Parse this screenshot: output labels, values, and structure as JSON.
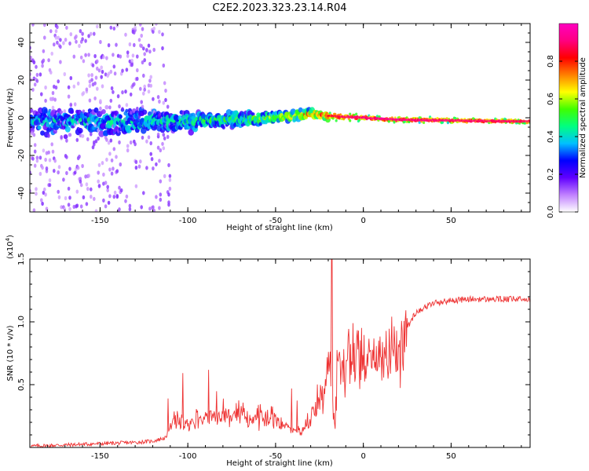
{
  "title": "C2E2.2023.323.23.14.R04",
  "chart_data": [
    {
      "type": "heatmap",
      "panel": "top",
      "xlabel": "Height of straight line (km)",
      "ylabel": "Frequency (Hz)",
      "xlim": [
        -190,
        95
      ],
      "ylim": [
        -50,
        50
      ],
      "xticks": [
        -150,
        -100,
        -50,
        0,
        50
      ],
      "yticks": [
        -40,
        -20,
        0,
        20,
        40
      ],
      "colorbar": {
        "label": "Normalized spectral amplitude",
        "range": [
          0,
          1
        ],
        "ticks": [
          "0.0",
          "0.2",
          "0.4",
          "0.6",
          "0.8"
        ],
        "tick_values": [
          0.0,
          0.2,
          0.4,
          0.6,
          0.8
        ],
        "colors": [
          "#ffffff",
          "#c080ff",
          "#6000ff",
          "#0000ff",
          "#00c0ff",
          "#00ff80",
          "#40ff00",
          "#ffff00",
          "#ff8000",
          "#ff0000",
          "#ff0080",
          "#ff00c0"
        ]
      },
      "band": {
        "description_free": true,
        "center_hz": [
          [
            -190,
            -2
          ],
          [
            -100,
            -2
          ],
          [
            -50,
            0
          ],
          [
            -30,
            2
          ],
          [
            -20,
            1
          ],
          [
            0,
            0
          ],
          [
            20,
            -1
          ],
          [
            95,
            -2
          ]
        ],
        "halfwidth_hz": [
          [
            -190,
            9
          ],
          [
            -130,
            9
          ],
          [
            -100,
            7
          ],
          [
            -50,
            4
          ],
          [
            -20,
            3
          ],
          [
            0,
            2
          ],
          [
            95,
            1.5
          ]
        ],
        "peak_amplitude": [
          [
            -190,
            0.35
          ],
          [
            -100,
            0.4
          ],
          [
            -60,
            0.5
          ],
          [
            -20,
            0.8
          ],
          [
            0,
            0.9
          ],
          [
            95,
            0.85
          ]
        ]
      }
    },
    {
      "type": "line",
      "panel": "bottom",
      "xlabel": "Height of straight line (km)",
      "ylabel": "SNR (10 * v/v)",
      "multiplier_label": "(x10",
      "multiplier_exp": "4",
      "xlim": [
        -190,
        95
      ],
      "ylim": [
        0,
        1.5
      ],
      "xticks": [
        -150,
        -100,
        -50,
        0,
        50
      ],
      "yticks": [
        0.5,
        1.0,
        1.5
      ],
      "ytick_labels": [
        "0.5",
        "1.0",
        "1.5"
      ],
      "color": "#ee3333",
      "series": [
        {
          "name": "SNR",
          "x": [
            -190,
            -170,
            -150,
            -130,
            -120,
            -112,
            -108,
            -100,
            -90,
            -80,
            -70,
            -60,
            -50,
            -40,
            -35,
            -30,
            -25,
            -22,
            -20,
            -18,
            -16,
            -15,
            -10,
            -5,
            0,
            5,
            10,
            15,
            20,
            25,
            30,
            40,
            50,
            60,
            70,
            80,
            90,
            95
          ],
          "y": [
            0.01,
            0.02,
            0.03,
            0.04,
            0.05,
            0.08,
            0.22,
            0.2,
            0.24,
            0.27,
            0.25,
            0.25,
            0.22,
            0.15,
            0.12,
            0.25,
            0.35,
            0.55,
            0.6,
            0.45,
            0.18,
            0.65,
            0.72,
            0.72,
            0.75,
            0.72,
            0.75,
            0.65,
            0.78,
            0.95,
            1.08,
            1.15,
            1.17,
            1.18,
            1.18,
            1.18,
            1.18,
            1.18
          ]
        }
      ]
    }
  ]
}
